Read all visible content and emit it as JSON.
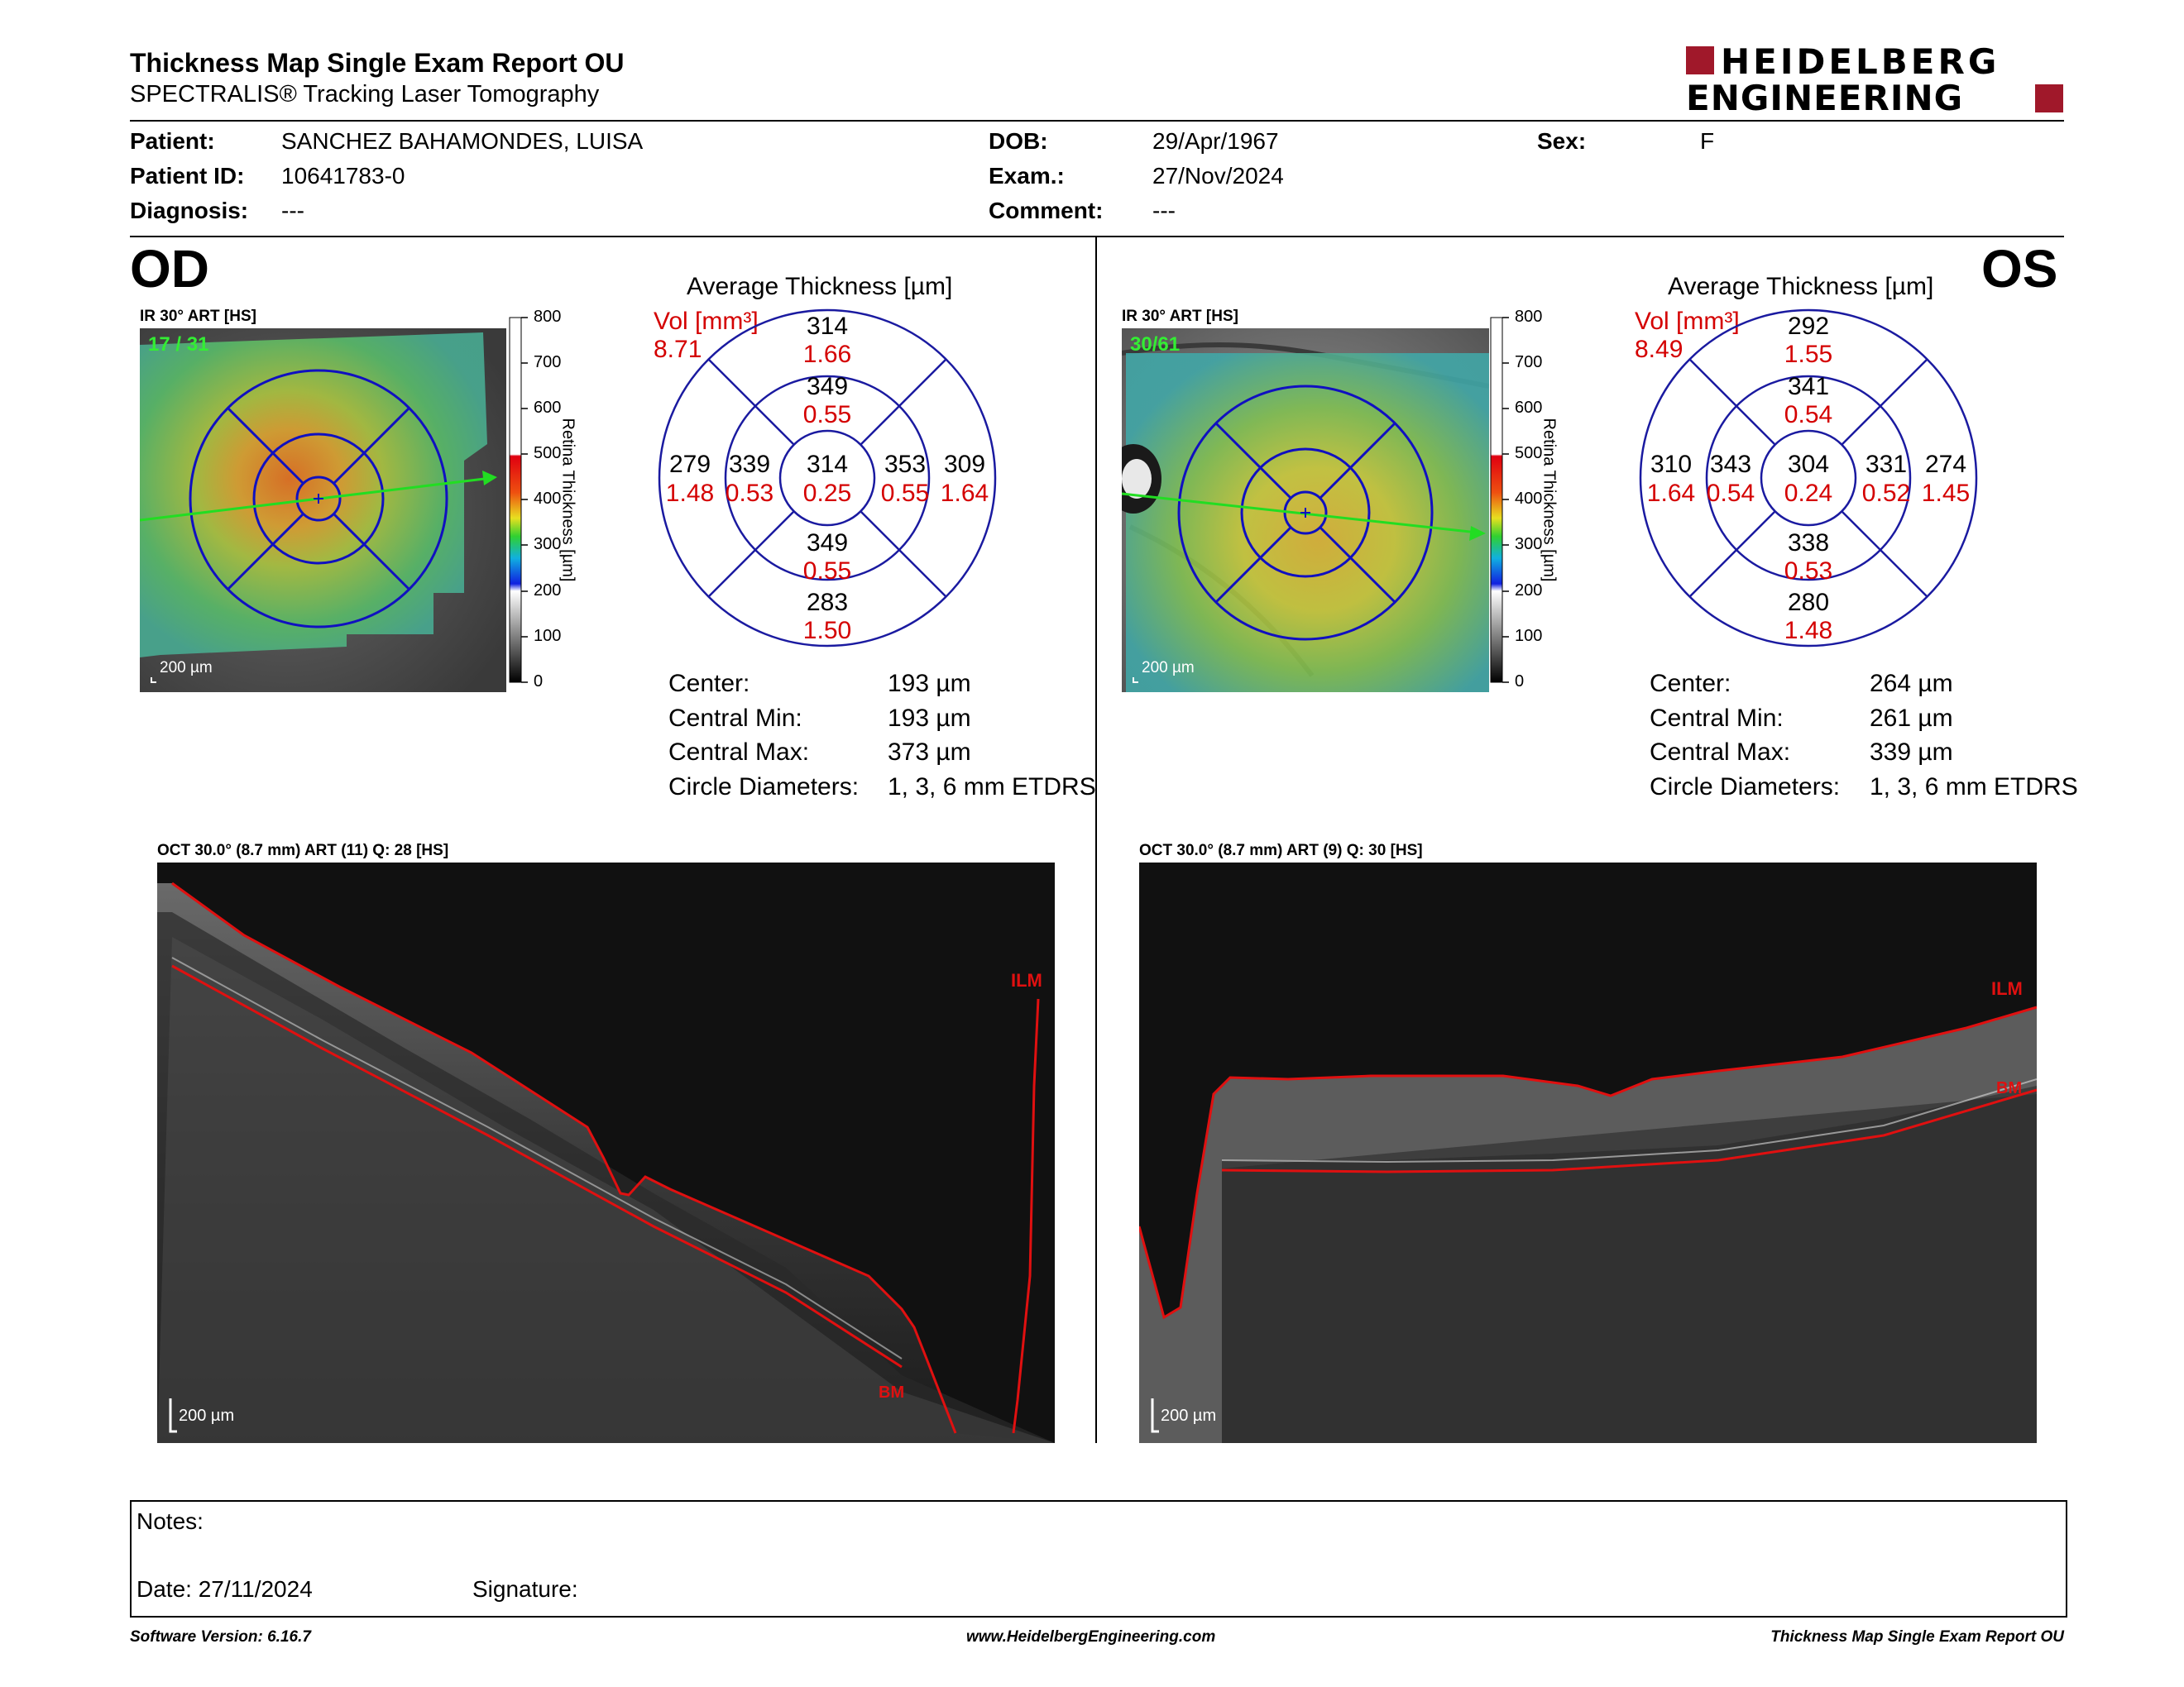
{
  "header": {
    "title": "Thickness Map Single Exam Report OU",
    "subtitle": "SPECTRALIS® Tracking Laser Tomography",
    "logo_line1": "HEIDELBERG",
    "logo_line2": "ENGINEERING",
    "brand_color": "#a0182a"
  },
  "patient": {
    "patient_label": "Patient:",
    "patient_value": "SANCHEZ BAHAMONDES, LUISA",
    "id_label": "Patient ID:",
    "id_value": "10641783-0",
    "diagnosis_label": "Diagnosis:",
    "diagnosis_value": "---",
    "dob_label": "DOB:",
    "dob_value": "29/Apr/1967",
    "exam_label": "Exam.:",
    "exam_value": "27/Nov/2024",
    "comment_label": "Comment:",
    "comment_value": "---",
    "sex_label": "Sex:",
    "sex_value": "F"
  },
  "colorbar": {
    "ticks": [
      "800",
      "700",
      "600",
      "500",
      "400",
      "300",
      "200",
      "100",
      "0"
    ],
    "label": "Retina Thickness [µm]"
  },
  "od": {
    "eye": "OD",
    "image_label": "IR 30° ART [HS]",
    "frame_count": "17 / 31",
    "scale": "200 µm",
    "avg_title": "Average Thickness [µm]",
    "vol_label": "Vol [mm³]",
    "vol_value": "8.71",
    "sectors": {
      "outer_sup": {
        "t": "314",
        "v": "1.66"
      },
      "inner_sup": {
        "t": "349",
        "v": "0.55"
      },
      "outer_temp": {
        "t": "279",
        "v": "1.48"
      },
      "inner_temp": {
        "t": "339",
        "v": "0.53"
      },
      "center": {
        "t": "314",
        "v": "0.25"
      },
      "inner_nas": {
        "t": "353",
        "v": "0.55"
      },
      "outer_nas": {
        "t": "309",
        "v": "1.64"
      },
      "inner_inf": {
        "t": "349",
        "v": "0.55"
      },
      "outer_inf": {
        "t": "283",
        "v": "1.50"
      }
    },
    "stats": [
      {
        "label": "Center:",
        "value": "193 µm"
      },
      {
        "label": "Central Min:",
        "value": "193 µm"
      },
      {
        "label": "Central Max:",
        "value": "373 µm"
      },
      {
        "label": "Circle Diameters:",
        "value": "1, 3, 6 mm ETDRS"
      }
    ],
    "oct_label": "OCT 30.0° (8.7 mm) ART (11) Q: 28 [HS]",
    "oct_scale": "200 µm",
    "ilm": "ILM",
    "bm": "BM"
  },
  "os": {
    "eye": "OS",
    "image_label": "IR 30° ART [HS]",
    "frame_count": "30/61",
    "scale": "200 µm",
    "avg_title": "Average Thickness [µm]",
    "vol_label": "Vol [mm³]",
    "vol_value": "8.49",
    "sectors": {
      "outer_sup": {
        "t": "292",
        "v": "1.55"
      },
      "inner_sup": {
        "t": "341",
        "v": "0.54"
      },
      "outer_temp": {
        "t": "310",
        "v": "1.64"
      },
      "inner_temp": {
        "t": "343",
        "v": "0.54"
      },
      "center": {
        "t": "304",
        "v": "0.24"
      },
      "inner_nas": {
        "t": "331",
        "v": "0.52"
      },
      "outer_nas": {
        "t": "274",
        "v": "1.45"
      },
      "inner_inf": {
        "t": "338",
        "v": "0.53"
      },
      "outer_inf": {
        "t": "280",
        "v": "1.48"
      }
    },
    "stats": [
      {
        "label": "Center:",
        "value": "264 µm"
      },
      {
        "label": "Central Min:",
        "value": "261 µm"
      },
      {
        "label": "Central Max:",
        "value": "339 µm"
      },
      {
        "label": "Circle Diameters:",
        "value": "1, 3, 6 mm ETDRS"
      }
    ],
    "oct_label": "OCT 30.0° (8.7 mm) ART (9) Q: 30 [HS]",
    "oct_scale": "200 µm",
    "ilm": "ILM",
    "bm": "BM"
  },
  "notes": {
    "notes_label": "Notes:",
    "date_label": "Date: 27/11/2024",
    "signature_label": "Signature:"
  },
  "footer": {
    "software": "Software Version: 6.16.7",
    "website": "www.HeidelbergEngineering.com",
    "report": "Thickness Map Single Exam Report OU"
  }
}
